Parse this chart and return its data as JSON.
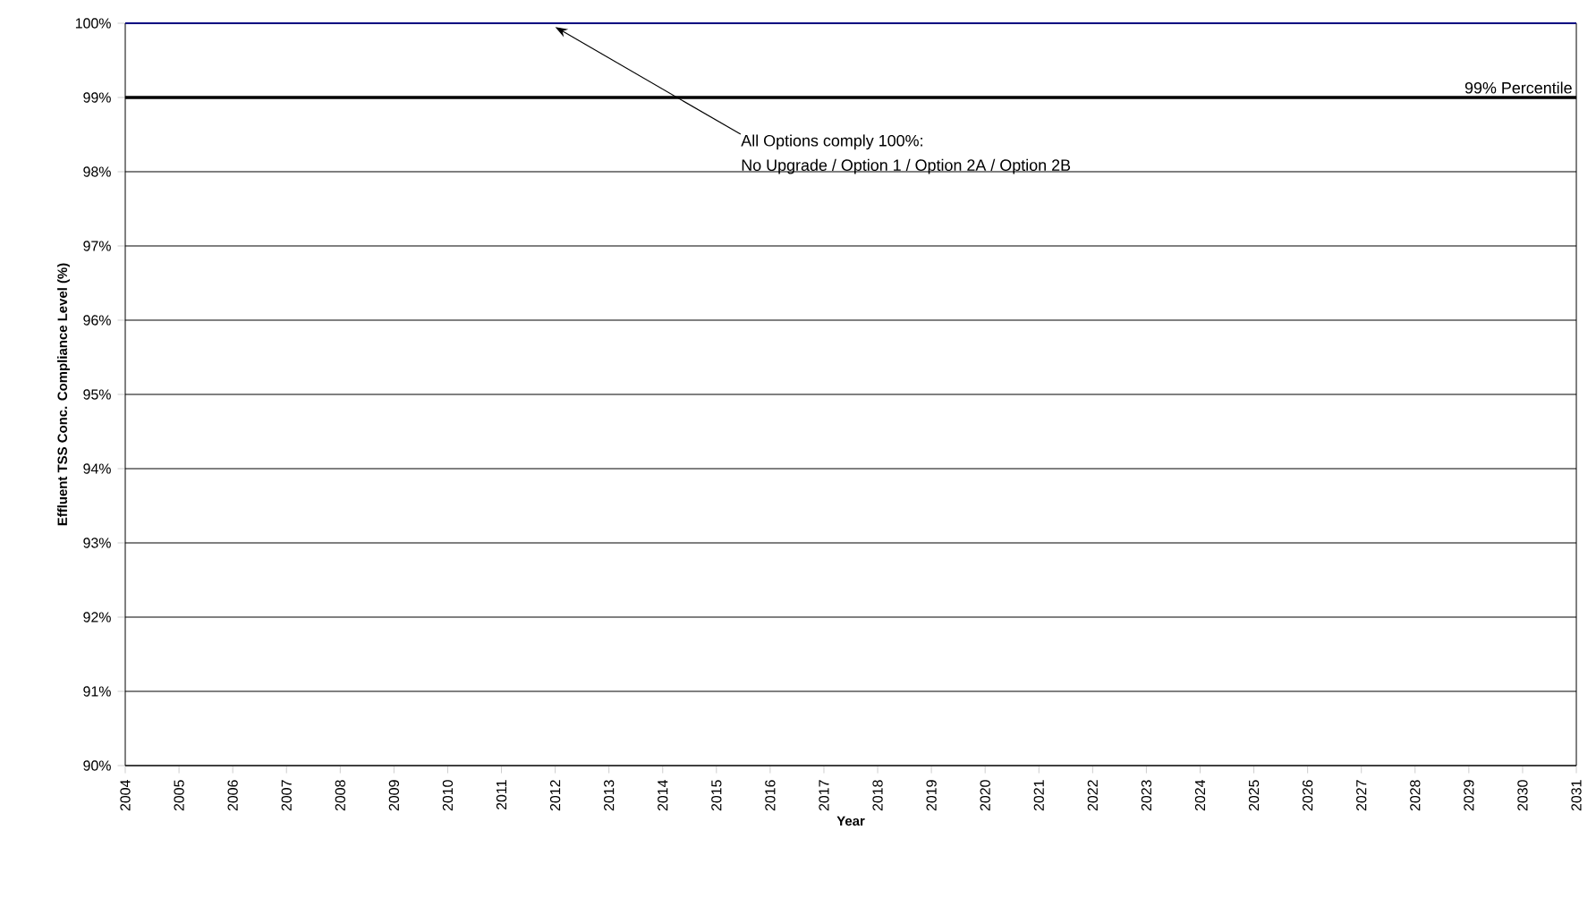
{
  "chart_data": {
    "type": "line",
    "xlabel": "Year",
    "ylabel": "Effluent TSS Conc. Compliance Level (%)",
    "x": [
      2004,
      2031
    ],
    "series": [
      {
        "color": "#000080",
        "values": [
          100,
          100
        ]
      }
    ],
    "xlim": [
      2004,
      2031
    ],
    "xticks": [
      2004,
      2005,
      2006,
      2007,
      2008,
      2009,
      2010,
      2011,
      2012,
      2013,
      2014,
      2015,
      2016,
      2017,
      2018,
      2019,
      2020,
      2021,
      2022,
      2023,
      2024,
      2025,
      2026,
      2027,
      2028,
      2029,
      2030,
      2031
    ],
    "ylim": [
      90,
      100
    ],
    "yticks": [
      {
        "value": 90,
        "label": "90%"
      },
      {
        "value": 91,
        "label": "91%"
      },
      {
        "value": 92,
        "label": "92%"
      },
      {
        "value": 93,
        "label": "93%"
      },
      {
        "value": 94,
        "label": "94%"
      },
      {
        "value": 95,
        "label": "95%"
      },
      {
        "value": 96,
        "label": "96%"
      },
      {
        "value": 97,
        "label": "97%"
      },
      {
        "value": 98,
        "label": "98%"
      },
      {
        "value": 99,
        "label": "99%"
      },
      {
        "value": 100,
        "label": "100%"
      }
    ],
    "ref_lines": [
      {
        "axis": "y",
        "value": 99,
        "label": "99% Percentile",
        "color": "#000000"
      }
    ],
    "annotations": [
      {
        "text": "All Options comply 100%:",
        "x": 2012,
        "y": 100
      },
      "No Upgrade / Option 1 / Option 2A / Option 2B"
    ],
    "grid": "y",
    "marker": "none",
    "line_style": "solid"
  }
}
